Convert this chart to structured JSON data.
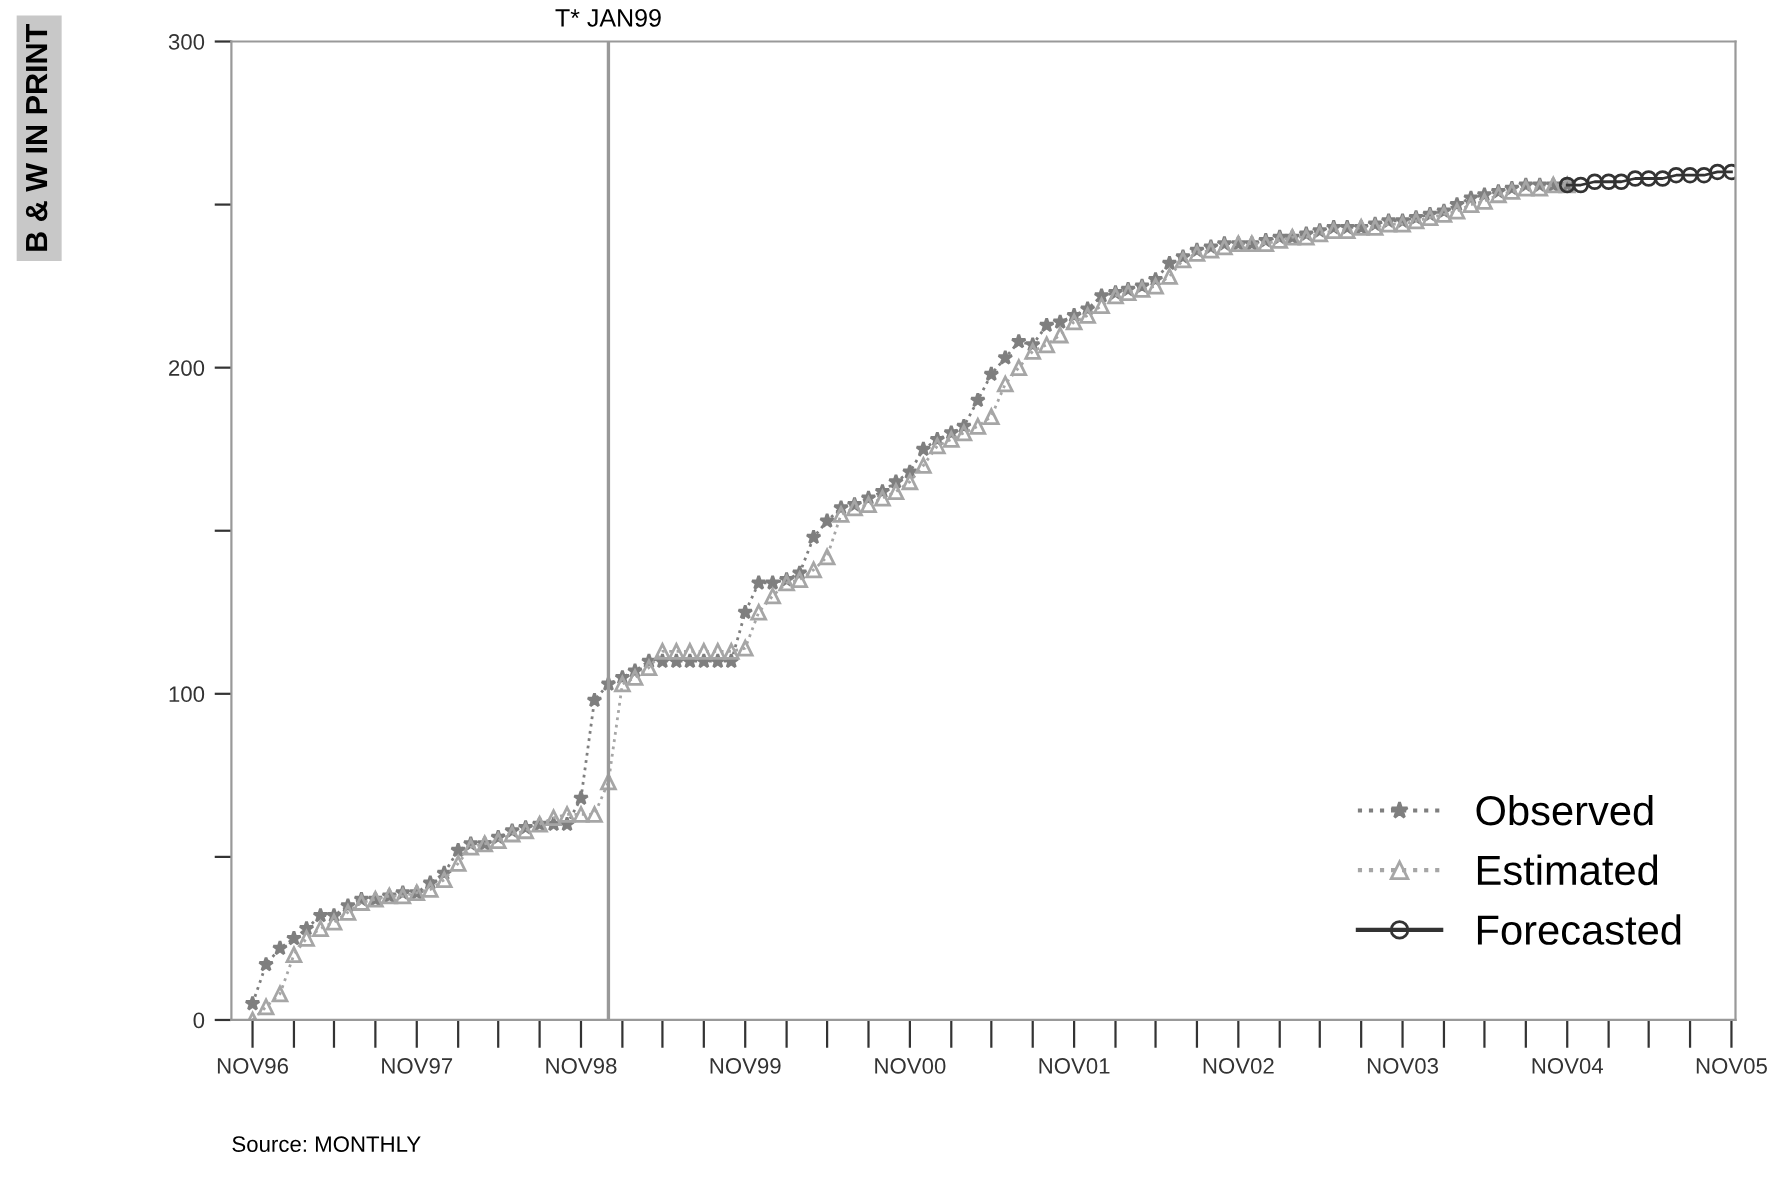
{
  "chart_data": {
    "type": "line",
    "xlim": [
      "1996-09-15",
      "2005-11-10"
    ],
    "xticks": [
      {
        "value": "1996-11",
        "label": "NOV96"
      },
      {
        "value": "1997-02",
        "label": null
      },
      {
        "value": "1997-05",
        "label": null
      },
      {
        "value": "1997-08",
        "label": null
      },
      {
        "value": "1997-11",
        "label": "NOV97"
      },
      {
        "value": "1998-02",
        "label": null
      },
      {
        "value": "1998-05",
        "label": null
      },
      {
        "value": "1998-08",
        "label": null
      },
      {
        "value": "1998-11",
        "label": "NOV98"
      },
      {
        "value": "1999-02",
        "label": null
      },
      {
        "value": "1999-05",
        "label": null
      },
      {
        "value": "1999-08",
        "label": null
      },
      {
        "value": "1999-11",
        "label": "NOV99"
      },
      {
        "value": "2000-02",
        "label": null
      },
      {
        "value": "2000-05",
        "label": null
      },
      {
        "value": "2000-08",
        "label": null
      },
      {
        "value": "2000-11",
        "label": "NOV00"
      },
      {
        "value": "2001-02",
        "label": null
      },
      {
        "value": "2001-05",
        "label": null
      },
      {
        "value": "2001-08",
        "label": null
      },
      {
        "value": "2001-11",
        "label": "NOV01"
      },
      {
        "value": "2002-02",
        "label": null
      },
      {
        "value": "2002-05",
        "label": null
      },
      {
        "value": "2002-08",
        "label": null
      },
      {
        "value": "2002-11",
        "label": "NOV02"
      },
      {
        "value": "2003-02",
        "label": null
      },
      {
        "value": "2003-05",
        "label": null
      },
      {
        "value": "2003-08",
        "label": null
      },
      {
        "value": "2003-11",
        "label": "NOV03"
      },
      {
        "value": "2004-02",
        "label": null
      },
      {
        "value": "2004-05",
        "label": null
      },
      {
        "value": "2004-08",
        "label": null
      },
      {
        "value": "2004-11",
        "label": "NOV04"
      },
      {
        "value": "2005-02",
        "label": null
      },
      {
        "value": "2005-05",
        "label": null
      },
      {
        "value": "2005-08",
        "label": null
      },
      {
        "value": "2005-11",
        "label": "NOV05"
      }
    ],
    "ylim": [
      0,
      300
    ],
    "yticks": [
      0,
      {
        "value": 50,
        "label": null
      },
      100,
      {
        "value": 150,
        "label": null
      },
      200,
      {
        "value": 250,
        "label": null
      },
      300
    ],
    "grid": false,
    "legend": "bottom right",
    "ref_lines": [
      {
        "axis": "x",
        "value": "1999-01",
        "label": "T* JAN99",
        "color": "#999999"
      }
    ],
    "annotations": [
      "Source: MONTHLY",
      "B & W IN PRINT"
    ],
    "series": [
      {
        "name": "Observed",
        "color": "#7f7f7f",
        "marker": "star",
        "line_style": "dotted",
        "x": [
          "1996-11",
          "1996-12",
          "1997-01",
          "1997-02",
          "1997-03",
          "1997-04",
          "1997-05",
          "1997-06",
          "1997-07",
          "1997-08",
          "1997-09",
          "1997-10",
          "1997-11",
          "1997-12",
          "1998-01",
          "1998-02",
          "1998-03",
          "1998-04",
          "1998-05",
          "1998-06",
          "1998-07",
          "1998-08",
          "1998-09",
          "1998-10",
          "1998-11",
          "1998-12",
          "1999-01",
          "1999-02",
          "1999-03",
          "1999-04",
          "1999-05",
          "1999-06",
          "1999-07",
          "1999-08",
          "1999-09",
          "1999-10",
          "1999-11",
          "1999-12",
          "2000-01",
          "2000-02",
          "2000-03",
          "2000-04",
          "2000-05",
          "2000-06",
          "2000-07",
          "2000-08",
          "2000-09",
          "2000-10",
          "2000-11",
          "2000-12",
          "2001-01",
          "2001-02",
          "2001-03",
          "2001-04",
          "2001-05",
          "2001-06",
          "2001-07",
          "2001-08",
          "2001-09",
          "2001-10",
          "2001-11",
          "2001-12",
          "2002-01",
          "2002-02",
          "2002-03",
          "2002-04",
          "2002-05",
          "2002-06",
          "2002-07",
          "2002-08",
          "2002-09",
          "2002-10",
          "2002-11",
          "2002-12",
          "2003-01",
          "2003-02",
          "2003-03",
          "2003-04",
          "2003-05",
          "2003-06",
          "2003-07",
          "2003-08",
          "2003-09",
          "2003-10",
          "2003-11",
          "2003-12",
          "2004-01",
          "2004-02",
          "2004-03",
          "2004-04",
          "2004-05",
          "2004-06",
          "2004-07",
          "2004-08",
          "2004-09",
          "2004-10",
          "2004-11"
        ],
        "values": [
          5,
          17,
          22,
          25,
          28,
          32,
          32,
          35,
          37,
          37,
          38,
          39,
          39,
          42,
          45,
          52,
          54,
          54,
          56,
          58,
          59,
          60,
          60,
          60,
          68,
          98,
          103,
          105,
          107,
          110,
          110,
          110,
          110,
          110,
          110,
          110,
          125,
          134,
          134,
          135,
          137,
          148,
          153,
          157,
          158,
          160,
          162,
          165,
          168,
          175,
          178,
          180,
          182,
          190,
          198,
          203,
          208,
          207,
          213,
          214,
          216,
          218,
          222,
          223,
          224,
          225,
          227,
          232,
          234,
          236,
          237,
          238,
          238,
          238,
          239,
          240,
          240,
          241,
          242,
          243,
          243,
          243,
          244,
          245,
          245,
          246,
          247,
          248,
          250,
          252,
          253,
          254,
          255,
          256,
          256,
          256,
          256
        ]
      },
      {
        "name": "Estimated",
        "color": "#a6a6a6",
        "marker": "triangle",
        "line_style": "dotted",
        "x": [
          "1996-11",
          "1996-12",
          "1997-01",
          "1997-02",
          "1997-03",
          "1997-04",
          "1997-05",
          "1997-06",
          "1997-07",
          "1997-08",
          "1997-09",
          "1997-10",
          "1997-11",
          "1997-12",
          "1998-01",
          "1998-02",
          "1998-03",
          "1998-04",
          "1998-05",
          "1998-06",
          "1998-07",
          "1998-08",
          "1998-09",
          "1998-10",
          "1998-11",
          "1998-12",
          "1999-01",
          "1999-02",
          "1999-03",
          "1999-04",
          "1999-05",
          "1999-06",
          "1999-07",
          "1999-08",
          "1999-09",
          "1999-10",
          "1999-11",
          "1999-12",
          "2000-01",
          "2000-02",
          "2000-03",
          "2000-04",
          "2000-05",
          "2000-06",
          "2000-07",
          "2000-08",
          "2000-09",
          "2000-10",
          "2000-11",
          "2000-12",
          "2001-01",
          "2001-02",
          "2001-03",
          "2001-04",
          "2001-05",
          "2001-06",
          "2001-07",
          "2001-08",
          "2001-09",
          "2001-10",
          "2001-11",
          "2001-12",
          "2002-01",
          "2002-02",
          "2002-03",
          "2002-04",
          "2002-05",
          "2002-06",
          "2002-07",
          "2002-08",
          "2002-09",
          "2002-10",
          "2002-11",
          "2002-12",
          "2003-01",
          "2003-02",
          "2003-03",
          "2003-04",
          "2003-05",
          "2003-06",
          "2003-07",
          "2003-08",
          "2003-09",
          "2003-10",
          "2003-11",
          "2003-12",
          "2004-01",
          "2004-02",
          "2004-03",
          "2004-04",
          "2004-05",
          "2004-06",
          "2004-07",
          "2004-08",
          "2004-09",
          "2004-10",
          "2004-11"
        ],
        "values": [
          0,
          4,
          8,
          20,
          25,
          28,
          30,
          33,
          36,
          37,
          38,
          38,
          39,
          40,
          43,
          48,
          53,
          54,
          55,
          57,
          58,
          60,
          62,
          63,
          63,
          63,
          73,
          103,
          105,
          108,
          113,
          113,
          113,
          113,
          113,
          113,
          114,
          125,
          130,
          134,
          135,
          138,
          142,
          155,
          157,
          158,
          160,
          162,
          165,
          170,
          176,
          178,
          180,
          182,
          185,
          195,
          200,
          205,
          207,
          210,
          214,
          216,
          219,
          222,
          223,
          224,
          225,
          228,
          233,
          235,
          236,
          237,
          238,
          238,
          238,
          239,
          240,
          240,
          241,
          242,
          242,
          243,
          243,
          244,
          244,
          245,
          246,
          247,
          248,
          250,
          251,
          253,
          254,
          255,
          255,
          256,
          256
        ]
      },
      {
        "name": "Forecasted",
        "color": "#333333",
        "marker": "circle",
        "line_style": "solid",
        "x": [
          "2004-11",
          "2004-12",
          "2005-01",
          "2005-02",
          "2005-03",
          "2005-04",
          "2005-05",
          "2005-06",
          "2005-07",
          "2005-08",
          "2005-09",
          "2005-10",
          "2005-11"
        ],
        "values": [
          256,
          256,
          257,
          257,
          257,
          258,
          258,
          258,
          259,
          259,
          259,
          260,
          260
        ]
      }
    ]
  }
}
